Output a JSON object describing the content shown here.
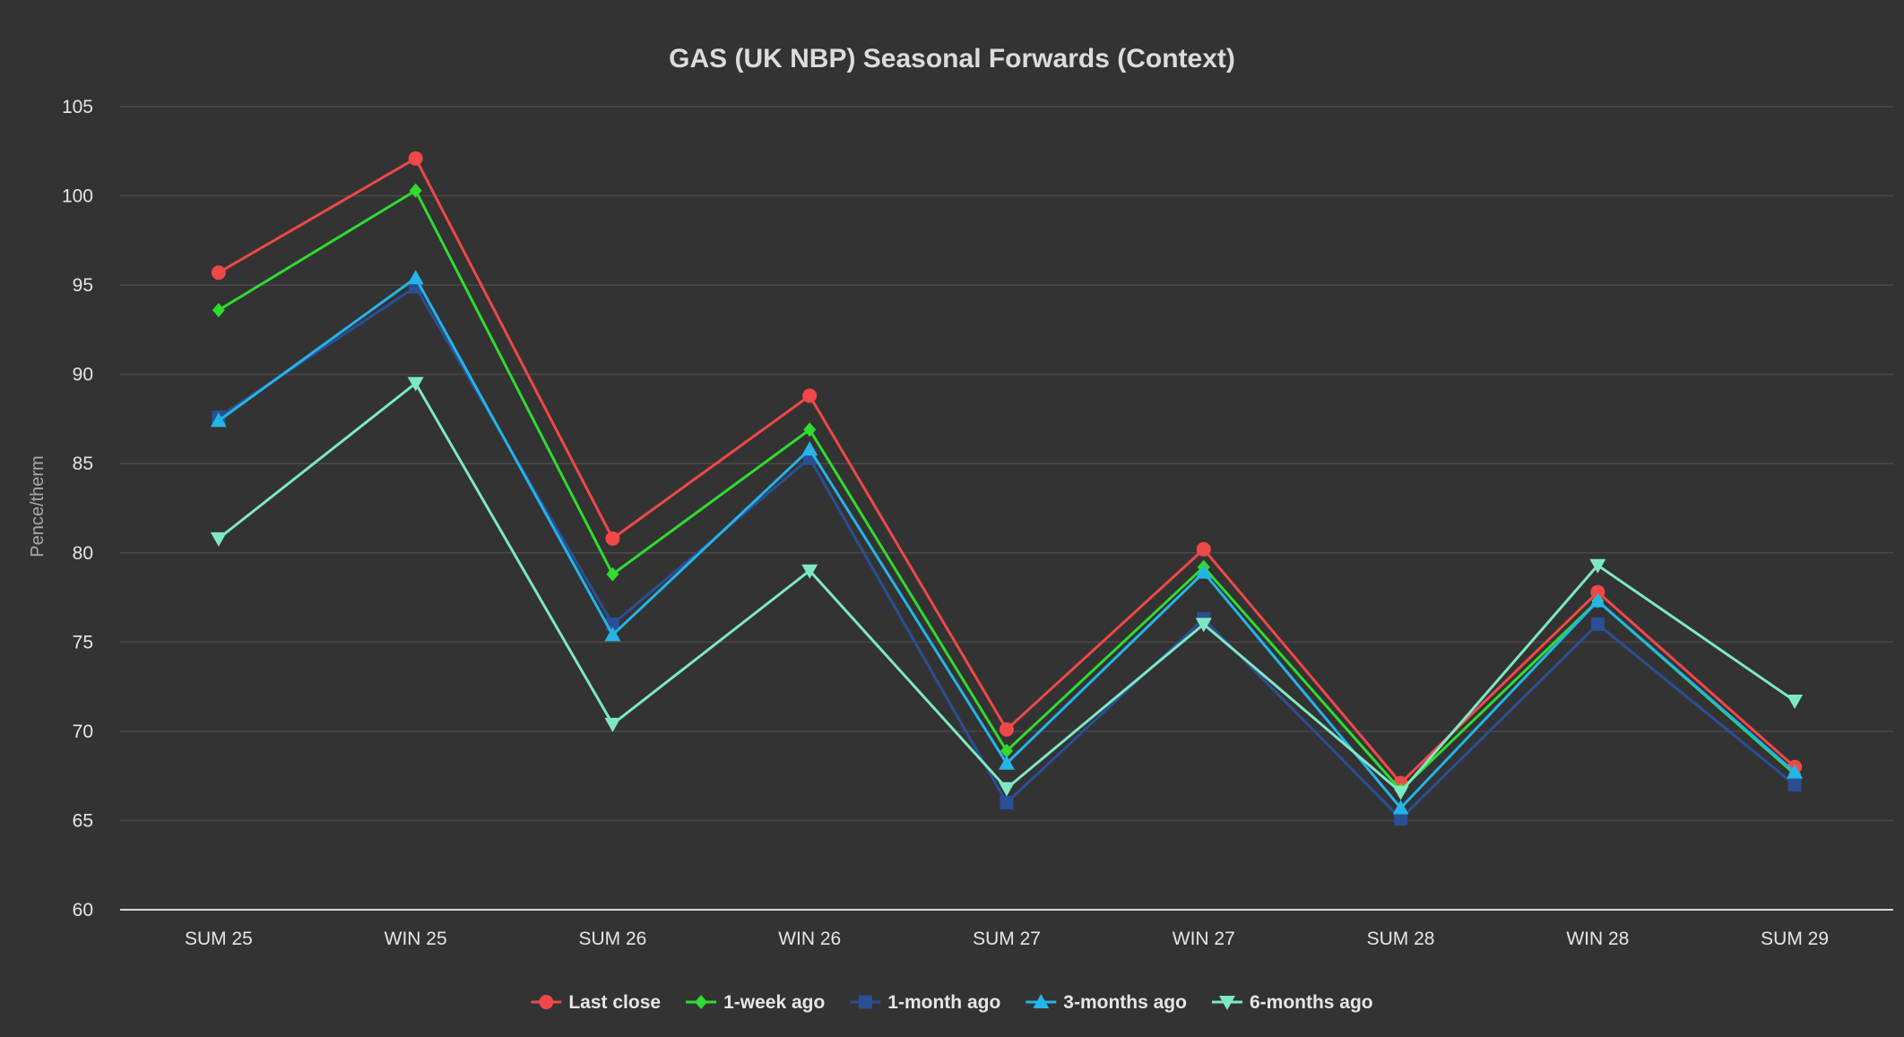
{
  "chart_data": {
    "type": "line",
    "title": "GAS (UK NBP) Seasonal Forwards (Context)",
    "xlabel": "",
    "ylabel": "Pence/therm",
    "ylim": [
      60,
      105
    ],
    "yticks": [
      60,
      65,
      70,
      75,
      80,
      85,
      90,
      95,
      100,
      105
    ],
    "grid": true,
    "legend_position": "bottom-center",
    "categories": [
      "SUM 25",
      "WIN 25",
      "SUM 26",
      "WIN 26",
      "SUM 27",
      "WIN 27",
      "SUM 28",
      "WIN 28",
      "SUM 29"
    ],
    "series": [
      {
        "name": "Last close",
        "color": "#f04848",
        "marker": "circle",
        "values": [
          95.7,
          102.1,
          80.8,
          88.8,
          70.1,
          80.2,
          67.1,
          77.8,
          68.0
        ]
      },
      {
        "name": "1-week ago",
        "color": "#2fdc2f",
        "marker": "diamond",
        "values": [
          93.6,
          100.3,
          78.8,
          86.9,
          68.9,
          79.2,
          66.7,
          77.3,
          67.6
        ]
      },
      {
        "name": "1-month ago",
        "color": "#2a4f94",
        "marker": "square",
        "values": [
          87.6,
          94.9,
          76.0,
          85.3,
          66.0,
          76.3,
          65.1,
          76.0,
          67.0
        ]
      },
      {
        "name": "3-months ago",
        "color": "#24b4e8",
        "marker": "triangle-up",
        "values": [
          87.4,
          95.4,
          75.4,
          85.8,
          68.2,
          78.9,
          65.7,
          77.3,
          67.7
        ]
      },
      {
        "name": "6-months ago",
        "color": "#7ee8c4",
        "marker": "triangle-down",
        "values": [
          80.8,
          89.5,
          70.4,
          79.0,
          66.8,
          76.0,
          66.6,
          79.3,
          71.7
        ]
      }
    ]
  }
}
